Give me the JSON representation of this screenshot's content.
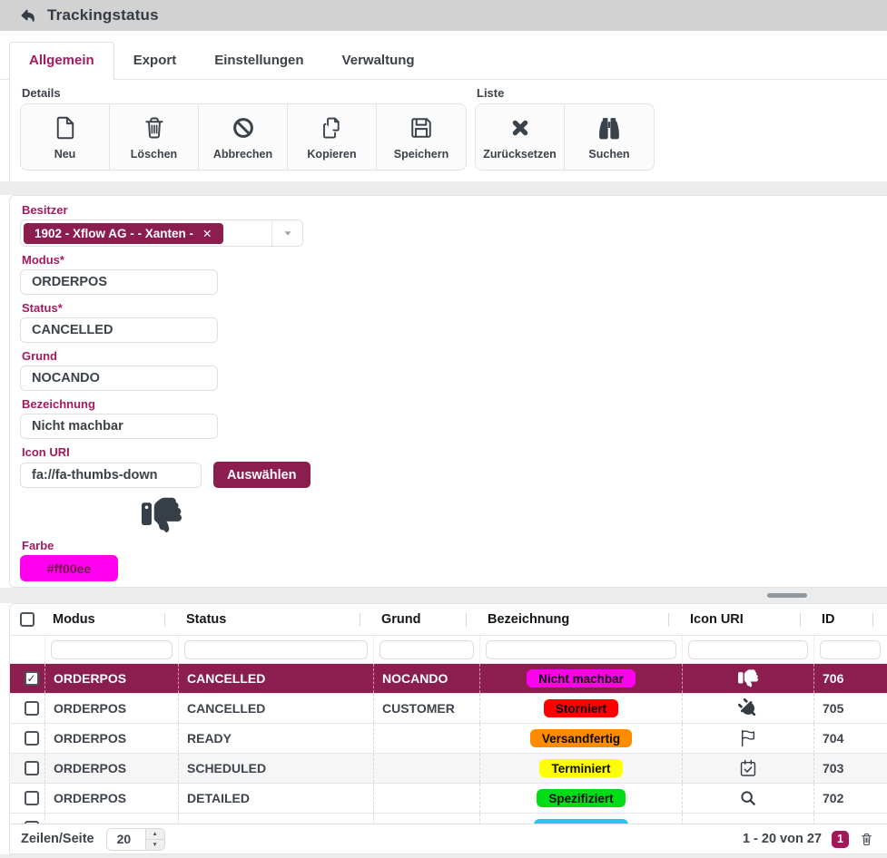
{
  "colors": {
    "accent": "#8b1d4f",
    "label": "#a51a5e",
    "selected_row": "#8b1d4f"
  },
  "header": {
    "title": "Trackingstatus",
    "back_icon": "reply-icon"
  },
  "tabs": [
    {
      "label": "Allgemein",
      "active": true
    },
    {
      "label": "Export",
      "active": false
    },
    {
      "label": "Einstellungen",
      "active": false
    },
    {
      "label": "Verwaltung",
      "active": false
    }
  ],
  "toolbar": {
    "details_label": "Details",
    "details_buttons": [
      {
        "label": "Neu",
        "icon": "file-icon"
      },
      {
        "label": "Löschen",
        "icon": "trash-icon"
      },
      {
        "label": "Abbrechen",
        "icon": "ban-icon"
      },
      {
        "label": "Kopieren",
        "icon": "copy-icon"
      },
      {
        "label": "Speichern",
        "icon": "save-icon"
      }
    ],
    "liste_label": "Liste",
    "liste_buttons": [
      {
        "label": "Zurücksetzen",
        "icon": "x-icon"
      },
      {
        "label": "Suchen",
        "icon": "binoculars-icon"
      }
    ]
  },
  "form": {
    "besitzer": {
      "label": "Besitzer",
      "tag": "1902 - Xflow AG - - Xanten -",
      "remove_glyph": "✕"
    },
    "modus": {
      "label": "Modus*",
      "value": "ORDERPOS"
    },
    "status": {
      "label": "Status*",
      "value": "CANCELLED"
    },
    "grund": {
      "label": "Grund",
      "value": "NOCANDO"
    },
    "bezeichnung": {
      "label": "Bezeichnung",
      "value": "Nicht machbar"
    },
    "icon_uri": {
      "label": "Icon URI",
      "value": "fa://fa-thumbs-down",
      "button": "Auswählen",
      "preview_icon": "thumbs-down-icon"
    },
    "farbe": {
      "label": "Farbe",
      "value": "#ff00ee",
      "color": "#ff00ee",
      "text_color": "#701a4a"
    }
  },
  "table": {
    "columns": [
      "Modus",
      "Status",
      "Grund",
      "Bezeichnung",
      "Icon URI",
      "ID"
    ],
    "rows": [
      {
        "selected": true,
        "checked": true,
        "modus": "ORDERPOS",
        "status": "CANCELLED",
        "grund": "NOCANDO",
        "bezeichnung": "Nicht machbar",
        "badge_color": "#ff00ee",
        "icon": "thumbs-down-icon",
        "id": "706"
      },
      {
        "selected": false,
        "checked": false,
        "modus": "ORDERPOS",
        "status": "CANCELLED",
        "grund": "CUSTOMER",
        "bezeichnung": "Storniert",
        "badge_color": "#ff0000",
        "icon": "plug-icon",
        "id": "705"
      },
      {
        "selected": false,
        "checked": false,
        "modus": "ORDERPOS",
        "status": "READY",
        "grund": "",
        "bezeichnung": "Versandfertig",
        "badge_color": "#ff8b00",
        "icon": "flag-icon",
        "id": "704"
      },
      {
        "selected": false,
        "checked": false,
        "modus": "ORDERPOS",
        "status": "SCHEDULED",
        "grund": "",
        "bezeichnung": "Terminiert",
        "badge_color": "#ffff00",
        "icon": "calendar-check-icon",
        "id": "703"
      },
      {
        "selected": false,
        "checked": false,
        "modus": "ORDERPOS",
        "status": "DETAILED",
        "grund": "",
        "bezeichnung": "Spezifiziert",
        "badge_color": "#00dd17",
        "icon": "search-icon",
        "id": "702"
      },
      {
        "selected": false,
        "checked": false,
        "partial": true,
        "modus": "",
        "status": "",
        "grund": "",
        "bezeichnung": "",
        "badge_color": "#2bc3ee",
        "icon": "ellipsis-icon",
        "id": ""
      }
    ]
  },
  "footer": {
    "rows_per_page_label": "Zeilen/Seite",
    "rows_per_page_value": "20",
    "range_text": "1 - 20 von 27",
    "page": "1",
    "trash_icon": "trash-icon"
  }
}
